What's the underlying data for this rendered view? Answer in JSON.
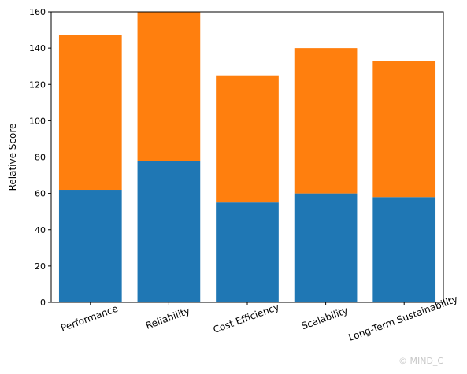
{
  "chart_data": {
    "type": "bar",
    "stacked": true,
    "title": "",
    "xlabel": "",
    "ylabel": "Relative Score",
    "categories": [
      "Performance",
      "Reliability",
      "Cost Efficiency",
      "Scalability",
      "Long-Term Sustainability"
    ],
    "series": [
      {
        "values": [
          62,
          78,
          55,
          60,
          58
        ],
        "color": "#1f77b4"
      },
      {
        "values": [
          85,
          82,
          70,
          80,
          75
        ],
        "color": "#ff7f0e"
      }
    ],
    "ylim": [
      0,
      160
    ],
    "yticks": [
      0,
      20,
      40,
      60,
      80,
      100,
      120,
      140,
      160
    ],
    "grid": false,
    "legend": "none"
  },
  "watermark": "© MIND_C"
}
